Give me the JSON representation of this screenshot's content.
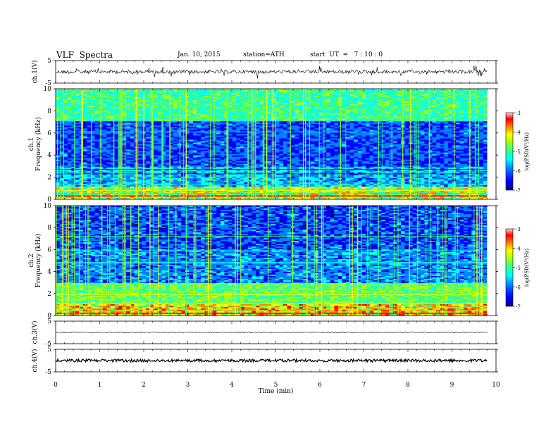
{
  "header": {
    "title": "VLF  Spectra",
    "date": "Jan. 10, 2015",
    "station": "station=ATH",
    "start": "start  UT  =   7 : 10 : 0"
  },
  "chart_data": {
    "type": "heatmap",
    "x": {
      "label": "Time  (min)",
      "range": [
        0,
        10
      ],
      "ticks": [
        "0",
        "1",
        "2",
        "3",
        "4",
        "5",
        "6",
        "7",
        "8",
        "9",
        "10"
      ],
      "data_end": 9.8
    },
    "panels": [
      {
        "id": "ch1-wave",
        "type": "line",
        "ylabel": "ch.1(V)",
        "ylim": [
          -5,
          5
        ],
        "ticks": [
          "5",
          "-5"
        ],
        "baseline": 0,
        "amplitude": "small with frequent short spikes"
      },
      {
        "id": "ch1-spec",
        "type": "heatmap",
        "ylabel": [
          "ch.1",
          "Frequency  (kHz)"
        ],
        "ylim": [
          0,
          10
        ],
        "ticks": [
          "0",
          "2",
          "4",
          "6",
          "8",
          "10"
        ]
      },
      {
        "id": "ch2-spec",
        "type": "heatmap",
        "ylabel": [
          "ch.2",
          "Frequency  (kHz)"
        ],
        "ylim": [
          0,
          10
        ],
        "ticks": [
          "0",
          "2",
          "4",
          "6",
          "8",
          "10"
        ]
      },
      {
        "id": "ch3-wave",
        "type": "line",
        "ylabel": "ch.3(V)",
        "ylim": [
          -5,
          5
        ],
        "ticks": [
          "5",
          "-5"
        ],
        "baseline": 0
      },
      {
        "id": "ch4-wave",
        "type": "line",
        "ylabel": "ch.4(V)",
        "ylim": [
          -5,
          5
        ],
        "ticks": [
          "5",
          "-5"
        ],
        "baseline": 0
      }
    ],
    "colorbar": {
      "label": "log(PSD(V²/Hz)",
      "range": [
        -7,
        -3
      ],
      "ticks": [
        "-3",
        "-4",
        "-5",
        "-6",
        "-7"
      ],
      "colormap": [
        "#00007f",
        "#0000ff",
        "#0080ff",
        "#00ffff",
        "#40ff80",
        "#a0ff20",
        "#ffff00",
        "#ff8000",
        "#ff0000",
        "#ffffff"
      ]
    }
  }
}
